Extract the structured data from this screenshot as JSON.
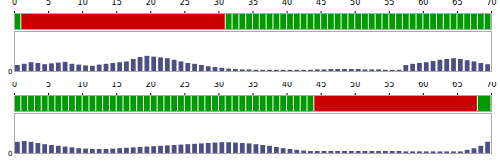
{
  "chart_data": [
    {
      "type": "timeline",
      "xlim": [
        0,
        70
      ],
      "xticks": [
        0,
        5,
        10,
        15,
        20,
        25,
        30,
        35,
        40,
        45,
        50,
        55,
        60,
        65,
        70
      ],
      "tick_labels": "x",
      "series": [
        {
          "color": "#009900",
          "values": [
            [
              0,
              1
            ]
          ]
        },
        {
          "color": "#009900",
          "values": [
            [
              31,
              32
            ],
            [
              32,
              33
            ],
            [
              33,
              34
            ],
            [
              34,
              35
            ],
            [
              35,
              36
            ],
            [
              36,
              37
            ],
            [
              37,
              38
            ],
            [
              38,
              39
            ],
            [
              39,
              40
            ],
            [
              40,
              41
            ],
            [
              41,
              42
            ],
            [
              42,
              43
            ],
            [
              43,
              44
            ],
            [
              44,
              45
            ],
            [
              45,
              46
            ],
            [
              46,
              47
            ],
            [
              47,
              48
            ],
            [
              48,
              49
            ],
            [
              49,
              50
            ],
            [
              50,
              51
            ],
            [
              51,
              52
            ],
            [
              52,
              53
            ],
            [
              53,
              54
            ],
            [
              54,
              55
            ],
            [
              55,
              56
            ],
            [
              56,
              57
            ],
            [
              57,
              58
            ],
            [
              58,
              59
            ],
            [
              59,
              60
            ],
            [
              60,
              61
            ],
            [
              61,
              62
            ],
            [
              62,
              63
            ],
            [
              63,
              64
            ],
            [
              64,
              65
            ],
            [
              65,
              66
            ],
            [
              66,
              67
            ],
            [
              67,
              68
            ],
            [
              68,
              69
            ],
            [
              69,
              70
            ]
          ]
        },
        {
          "color": "#cc0000",
          "values": [
            [
              1,
              31
            ]
          ]
        }
      ]
    },
    {
      "type": "bar",
      "color": "#4a5080",
      "ylim": [
        0,
        1
      ],
      "yticks": [
        0
      ],
      "tick_labels": "y",
      "categories": [
        null,
        null,
        null,
        null,
        null,
        null,
        null,
        null,
        null,
        null,
        null,
        null,
        null,
        null,
        null,
        null,
        null,
        null,
        null,
        null,
        null,
        null,
        null,
        null,
        null,
        null,
        null,
        null,
        null,
        null,
        null,
        null,
        null,
        null,
        null,
        null,
        null,
        null,
        null,
        null,
        null,
        null,
        null,
        null,
        null,
        null,
        null,
        null,
        null,
        null,
        null,
        null,
        null,
        null,
        null,
        null,
        null,
        null,
        null,
        null,
        null,
        null,
        null,
        null,
        null,
        null,
        null,
        null,
        null,
        null
      ],
      "values": [
        0.15,
        0.18,
        0.22,
        0.2,
        0.17,
        0.19,
        0.21,
        0.23,
        0.18,
        0.16,
        0.14,
        0.13,
        0.16,
        0.18,
        0.2,
        0.22,
        0.24,
        0.3,
        0.35,
        0.38,
        0.36,
        0.34,
        0.32,
        0.28,
        0.24,
        0.2,
        0.18,
        0.15,
        0.12,
        0.1,
        0.08,
        0.06,
        0.05,
        0.04,
        0.04,
        0.03,
        0.03,
        0.03,
        0.03,
        0.03,
        0.03,
        0.03,
        0.03,
        0.03,
        0.04,
        0.04,
        0.05,
        0.05,
        0.05,
        0.05,
        0.05,
        0.04,
        0.04,
        0.04,
        0.03,
        0.03,
        0.03,
        0.15,
        0.18,
        0.2,
        0.22,
        0.25,
        0.28,
        0.3,
        0.32,
        0.3,
        0.27,
        0.24,
        0.2,
        0.17
      ]
    },
    {
      "type": "timeline",
      "xlim": [
        0,
        70
      ],
      "xticks": [
        0,
        5,
        10,
        15,
        20,
        25,
        30,
        35,
        40,
        45,
        50,
        55,
        60,
        65,
        70
      ],
      "tick_labels": "x",
      "series": [
        {
          "color": "#009900",
          "values": [
            [
              0,
              1
            ],
            [
              1,
              2
            ],
            [
              2,
              3
            ],
            [
              3,
              4
            ],
            [
              4,
              5
            ],
            [
              5,
              6
            ],
            [
              6,
              7
            ],
            [
              7,
              8
            ],
            [
              8,
              9
            ],
            [
              9,
              10
            ],
            [
              10,
              11
            ],
            [
              11,
              12
            ],
            [
              12,
              13
            ],
            [
              13,
              14
            ],
            [
              14,
              15
            ],
            [
              15,
              16
            ],
            [
              16,
              17
            ],
            [
              17,
              18
            ],
            [
              18,
              19
            ],
            [
              19,
              20
            ],
            [
              20,
              21
            ],
            [
              21,
              22
            ],
            [
              22,
              23
            ],
            [
              23,
              24
            ],
            [
              24,
              25
            ],
            [
              25,
              26
            ],
            [
              26,
              27
            ],
            [
              27,
              28
            ],
            [
              28,
              29
            ],
            [
              29,
              30
            ],
            [
              30,
              31
            ],
            [
              31,
              32
            ],
            [
              32,
              33
            ],
            [
              33,
              34
            ],
            [
              34,
              35
            ],
            [
              35,
              36
            ],
            [
              36,
              37
            ],
            [
              37,
              38
            ],
            [
              38,
              39
            ],
            [
              39,
              40
            ],
            [
              40,
              41
            ],
            [
              41,
              42
            ],
            [
              42,
              43
            ],
            [
              43,
              44
            ]
          ]
        },
        {
          "color": "#009900",
          "values": [
            [
              68,
              70
            ]
          ]
        },
        {
          "color": "#cc0000",
          "values": [
            [
              44,
              68
            ]
          ]
        }
      ]
    },
    {
      "type": "bar",
      "color": "#4a5080",
      "ylim": [
        0,
        1
      ],
      "yticks": [
        0
      ],
      "tick_labels": "y",
      "categories": [
        null,
        null,
        null,
        null,
        null,
        null,
        null,
        null,
        null,
        null,
        null,
        null,
        null,
        null,
        null,
        null,
        null,
        null,
        null,
        null,
        null,
        null,
        null,
        null,
        null,
        null,
        null,
        null,
        null,
        null,
        null,
        null,
        null,
        null,
        null,
        null,
        null,
        null,
        null,
        null,
        null,
        null,
        null,
        null,
        null,
        null,
        null,
        null,
        null,
        null,
        null,
        null,
        null,
        null,
        null,
        null,
        null,
        null,
        null,
        null,
        null,
        null,
        null,
        null,
        null,
        null,
        null,
        null,
        null,
        null
      ],
      "values": [
        0.28,
        0.3,
        0.28,
        0.25,
        0.22,
        0.2,
        0.18,
        0.16,
        0.14,
        0.12,
        0.11,
        0.1,
        0.1,
        0.1,
        0.11,
        0.12,
        0.13,
        0.14,
        0.15,
        0.16,
        0.17,
        0.18,
        0.19,
        0.2,
        0.21,
        0.22,
        0.23,
        0.24,
        0.25,
        0.26,
        0.27,
        0.27,
        0.26,
        0.25,
        0.24,
        0.22,
        0.2,
        0.18,
        0.15,
        0.12,
        0.1,
        0.08,
        0.06,
        0.05,
        0.05,
        0.05,
        0.05,
        0.05,
        0.05,
        0.05,
        0.05,
        0.05,
        0.05,
        0.05,
        0.05,
        0.05,
        0.05,
        0.04,
        0.04,
        0.04,
        0.04,
        0.04,
        0.04,
        0.04,
        0.04,
        0.04,
        0.08,
        0.12,
        0.18,
        0.28
      ]
    }
  ]
}
